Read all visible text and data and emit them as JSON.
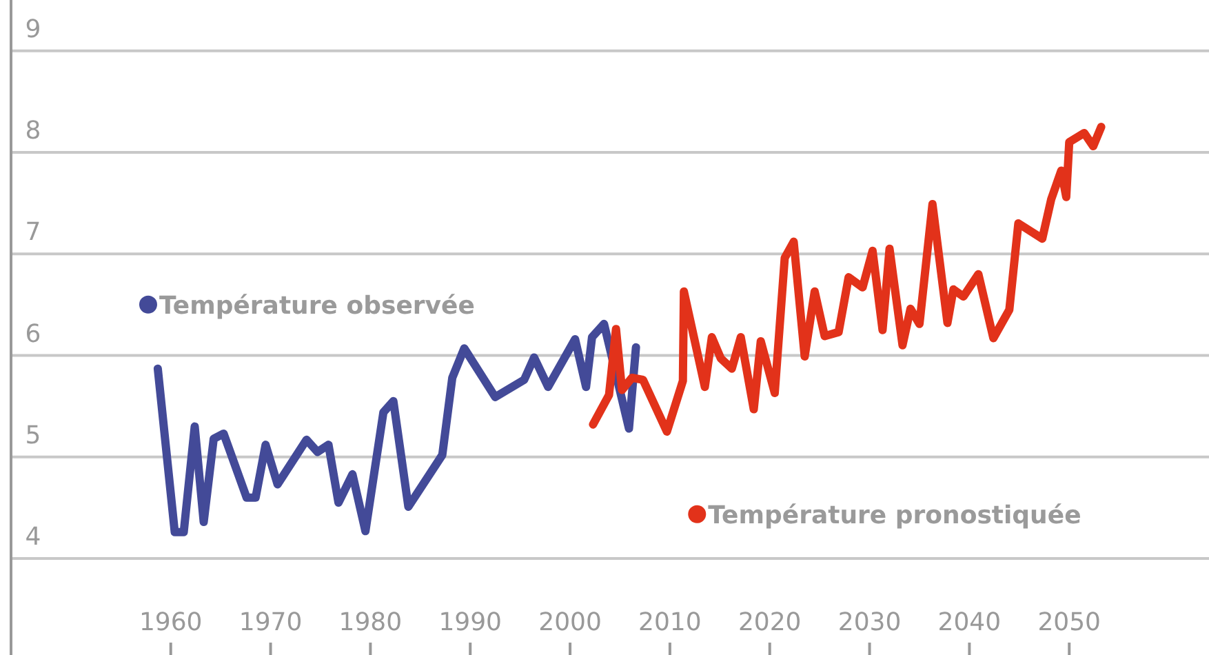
{
  "chart_data": {
    "type": "line",
    "xlim": [
      1944,
      2064
    ],
    "ylim": [
      3.05,
      9.5
    ],
    "xticks": [
      1960,
      1970,
      1980,
      1990,
      2000,
      2010,
      2020,
      2030,
      2040,
      2050
    ],
    "yticks": [
      4,
      5,
      6,
      7,
      8,
      9
    ],
    "grid": "y",
    "legend": "left",
    "marker": "none",
    "line_style": "solid",
    "series": [
      {
        "name": "Température observée",
        "color": "#434a98",
        "x": [
          1958.7,
          1960.4,
          1961.3,
          1962.4,
          1963.3,
          1964.3,
          1965.3,
          1967.6,
          1968.5,
          1969.5,
          1970.7,
          1973.6,
          1974.7,
          1975.8,
          1976.8,
          1978.2,
          1979.5,
          1981.3,
          1982.3,
          1983.8,
          1987.2,
          1988.2,
          1989.4,
          1992.5,
          1995.4,
          1996.4,
          1997.8,
          2000.5,
          2001.6,
          2002.2,
          2003.4,
          2005.9,
          2006.6
        ],
        "values": [
          5.87,
          4.26,
          4.26,
          5.3,
          4.36,
          5.18,
          5.23,
          4.6,
          4.6,
          5.12,
          4.73,
          5.17,
          5.05,
          5.12,
          4.55,
          4.83,
          4.27,
          5.44,
          5.55,
          4.51,
          5.02,
          5.78,
          6.07,
          5.59,
          5.76,
          5.98,
          5.69,
          6.16,
          5.69,
          6.18,
          6.31,
          5.28,
          6.08
        ]
      },
      {
        "name": "Température pronostiquée",
        "color": "#e2321a",
        "x": [
          2002.3,
          2003.9,
          2004.6,
          2005.2,
          2006.2,
          2007.3,
          2009.7,
          2011.3,
          2011.4,
          2013.5,
          2014.2,
          2015.1,
          2016.2,
          2017.1,
          2018.4,
          2019.1,
          2020.5,
          2021.5,
          2022.4,
          2023.5,
          2024.5,
          2025.5,
          2026.9,
          2027.9,
          2029.3,
          2030.3,
          2031.3,
          2032.0,
          2033.3,
          2034.1,
          2035.0,
          2036.3,
          2037.8,
          2038.4,
          2039.4,
          2040.9,
          2042.4,
          2044.0,
          2044.9,
          2047.3,
          2048.2,
          2049.2,
          2049.7,
          2050.0,
          2051.5,
          2052.4,
          2053.2
        ],
        "values": [
          5.32,
          5.61,
          6.26,
          5.66,
          5.78,
          5.76,
          5.25,
          5.75,
          6.63,
          5.69,
          6.18,
          5.97,
          5.87,
          6.18,
          5.47,
          6.14,
          5.63,
          6.96,
          7.12,
          5.99,
          6.63,
          6.19,
          6.23,
          6.77,
          6.67,
          7.03,
          6.25,
          7.05,
          6.1,
          6.46,
          6.31,
          7.49,
          6.32,
          6.65,
          6.58,
          6.8,
          6.17,
          6.45,
          7.3,
          7.15,
          7.54,
          7.82,
          7.56,
          8.1,
          8.19,
          8.06,
          8.25
        ]
      }
    ]
  }
}
